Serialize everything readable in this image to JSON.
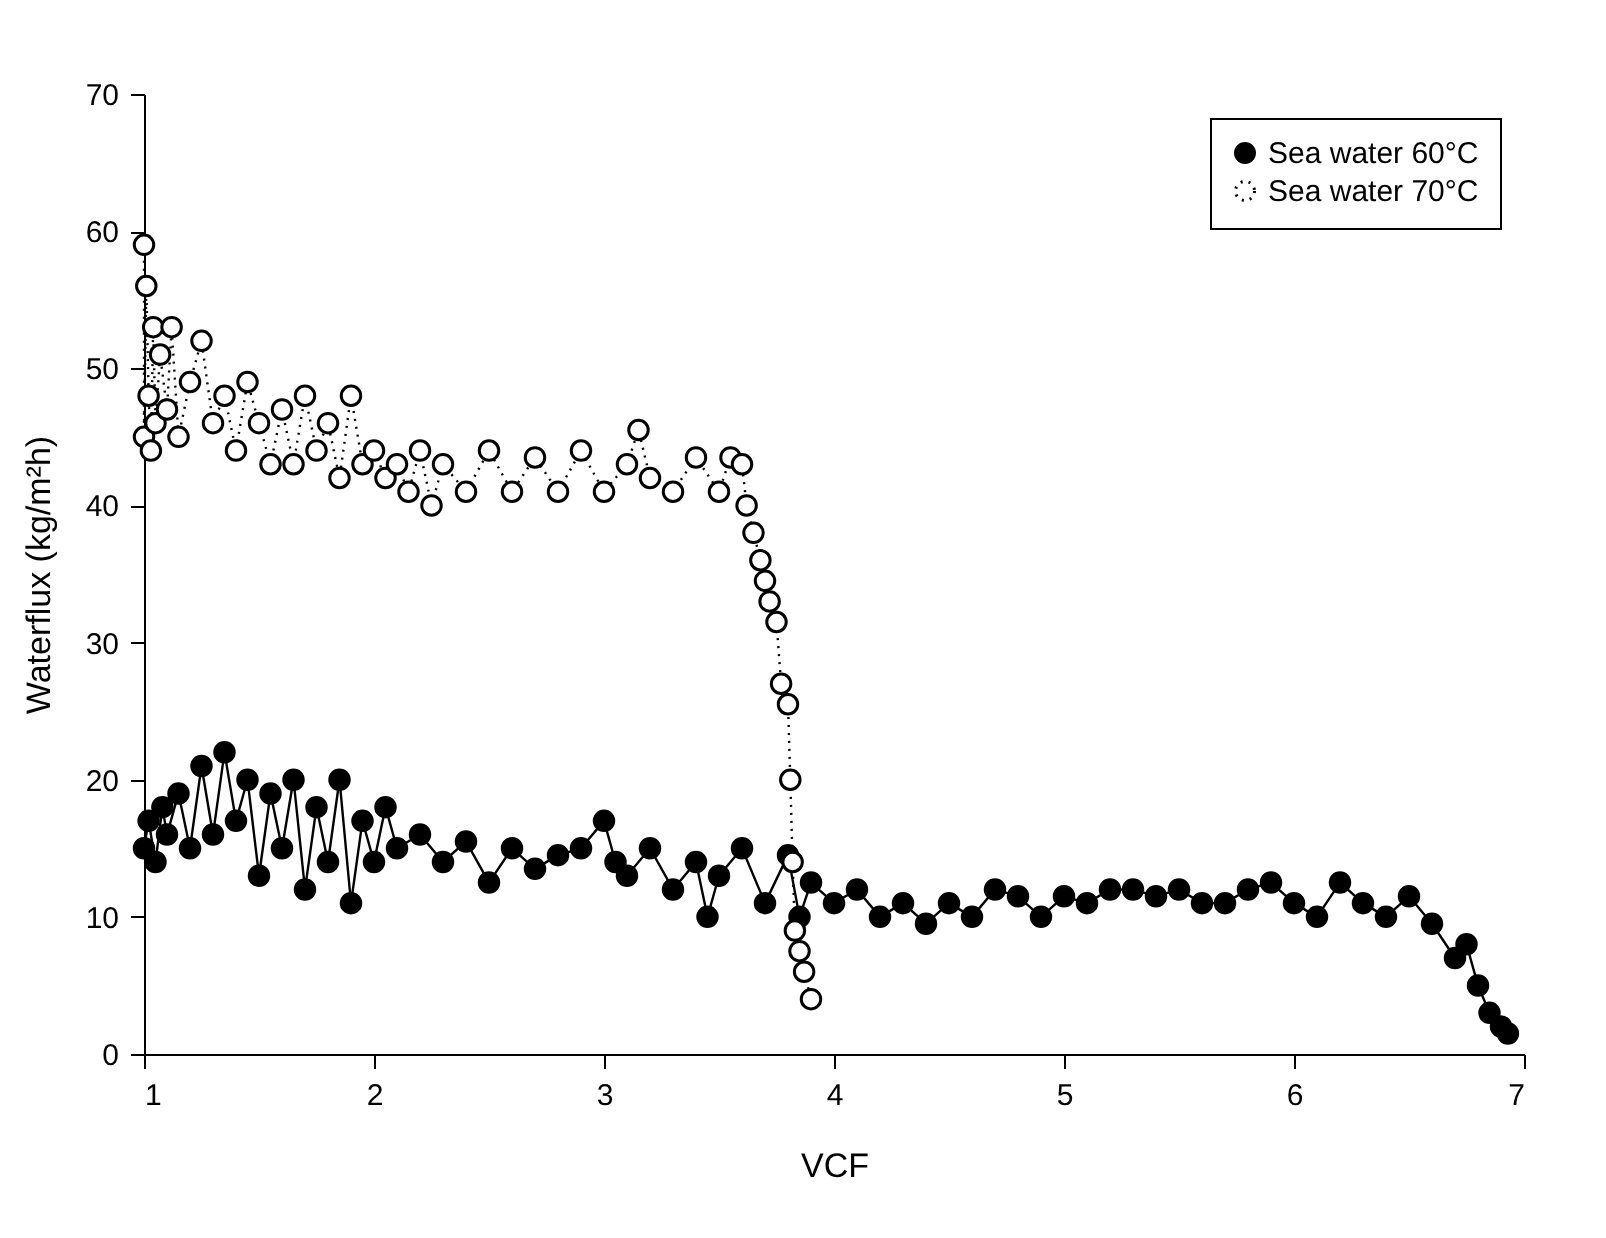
{
  "chart_data": {
    "type": "line",
    "xlabel": "VCF",
    "ylabel": "Waterflux (kg/m²h)",
    "xlim": [
      1,
      7
    ],
    "ylim": [
      0,
      70
    ],
    "xticks": [
      1,
      2,
      3,
      4,
      5,
      6,
      7
    ],
    "yticks": [
      0,
      10,
      20,
      30,
      40,
      50,
      60,
      70
    ],
    "grid": false,
    "legend": "top right",
    "marker": "circle",
    "series": [
      {
        "name": "Sea water 60°C",
        "color": "#000000",
        "line_style": "solid",
        "x": [
          1.0,
          1.02,
          1.05,
          1.08,
          1.1,
          1.15,
          1.2,
          1.25,
          1.3,
          1.35,
          1.4,
          1.45,
          1.5,
          1.55,
          1.6,
          1.65,
          1.7,
          1.75,
          1.8,
          1.85,
          1.9,
          1.95,
          2.0,
          2.05,
          2.1,
          2.2,
          2.3,
          2.4,
          2.5,
          2.6,
          2.7,
          2.8,
          2.9,
          3.0,
          3.05,
          3.1,
          3.2,
          3.3,
          3.4,
          3.45,
          3.5,
          3.6,
          3.7,
          3.8,
          3.85,
          3.9,
          4.0,
          4.1,
          4.2,
          4.3,
          4.4,
          4.5,
          4.6,
          4.7,
          4.8,
          4.9,
          5.0,
          5.1,
          5.2,
          5.3,
          5.4,
          5.5,
          5.6,
          5.7,
          5.8,
          5.9,
          6.0,
          6.1,
          6.2,
          6.3,
          6.4,
          6.5,
          6.6,
          6.7,
          6.75,
          6.8,
          6.85,
          6.9,
          6.93
        ],
        "values": [
          15,
          17,
          14,
          18,
          16,
          19,
          15,
          21,
          16,
          22,
          17,
          20,
          13,
          19,
          15,
          20,
          12,
          18,
          14,
          20,
          11,
          17,
          14,
          18,
          15,
          16,
          14,
          15.5,
          12.5,
          15,
          13.5,
          14.5,
          15,
          17,
          14,
          13,
          15,
          12,
          14,
          10,
          13,
          15,
          11,
          14.5,
          10,
          12.5,
          11,
          12,
          10,
          11,
          9.5,
          11,
          10,
          12,
          11.5,
          10,
          11.5,
          11,
          12,
          12,
          11.5,
          12,
          11,
          11,
          12,
          12.5,
          11,
          10,
          12.5,
          11,
          10,
          11.5,
          9.5,
          7,
          8,
          5,
          3,
          2,
          1.5
        ]
      },
      {
        "name": "Sea water 70°C",
        "color": "#000000",
        "line_style": "dotted",
        "x": [
          1.0,
          1.0,
          1.01,
          1.02,
          1.03,
          1.04,
          1.05,
          1.07,
          1.1,
          1.12,
          1.15,
          1.2,
          1.25,
          1.3,
          1.35,
          1.4,
          1.45,
          1.5,
          1.55,
          1.6,
          1.65,
          1.7,
          1.75,
          1.8,
          1.85,
          1.9,
          1.95,
          2.0,
          2.05,
          2.1,
          2.15,
          2.2,
          2.25,
          2.3,
          2.4,
          2.5,
          2.6,
          2.7,
          2.8,
          2.9,
          3.0,
          3.1,
          3.15,
          3.2,
          3.3,
          3.4,
          3.5,
          3.55,
          3.6,
          3.62,
          3.65,
          3.68,
          3.7,
          3.72,
          3.75,
          3.77,
          3.8,
          3.81,
          3.82,
          3.83,
          3.85,
          3.87,
          3.9
        ],
        "values": [
          59,
          45,
          56,
          48,
          44,
          53,
          46,
          51,
          47,
          53,
          45,
          49,
          52,
          46,
          48,
          44,
          49,
          46,
          43,
          47,
          43,
          48,
          44,
          46,
          42,
          48,
          43,
          44,
          42,
          43,
          41,
          44,
          40,
          43,
          41,
          44,
          41,
          43.5,
          41,
          44,
          41,
          43,
          45.5,
          42,
          41,
          43.5,
          41,
          43.5,
          43,
          40,
          38,
          36,
          34.5,
          33,
          31.5,
          27,
          25.5,
          20,
          14,
          9,
          7.5,
          6,
          4
        ]
      }
    ]
  }
}
